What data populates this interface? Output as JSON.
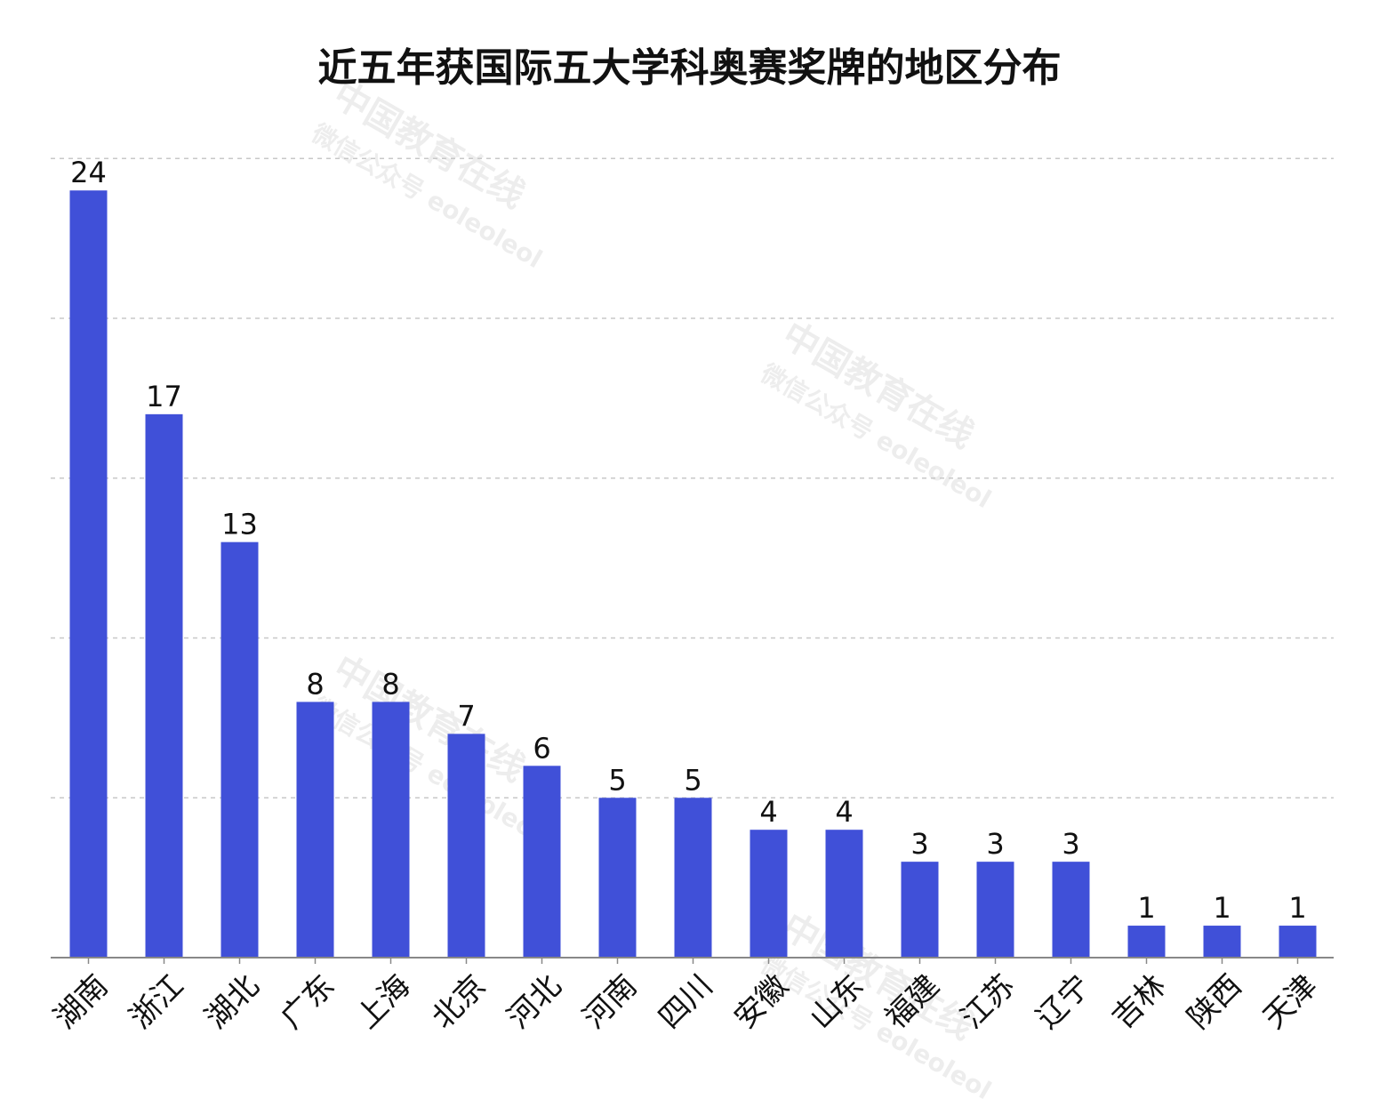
{
  "chart_data": {
    "type": "bar",
    "title": "近五年获国际五大学科奥赛奖牌的地区分布",
    "xlabel": "",
    "ylabel": "",
    "categories": [
      "湖南",
      "浙江",
      "湖北",
      "广东",
      "上海",
      "北京",
      "河北",
      "河南",
      "四川",
      "安徽",
      "山东",
      "福建",
      "江苏",
      "辽宁",
      "吉林",
      "陕西",
      "天津"
    ],
    "values": [
      24,
      17,
      13,
      8,
      8,
      7,
      6,
      5,
      5,
      4,
      4,
      3,
      3,
      3,
      1,
      1,
      1
    ],
    "ylim": [
      0,
      25
    ],
    "grid": true,
    "bar_color": "#4050d8",
    "gridline_values": [
      5,
      10,
      15,
      20,
      25
    ]
  },
  "watermark": {
    "main": "中国教育在线",
    "sub": "微信公众号 eoleoleol"
  }
}
